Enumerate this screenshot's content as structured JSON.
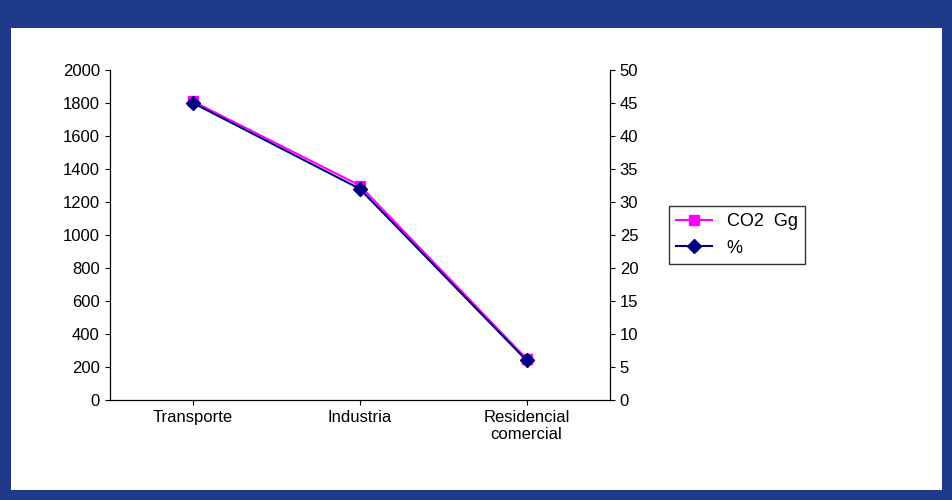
{
  "chart_data": {
    "type": "line",
    "categories": [
      "Transporte",
      "Industria",
      "Residencial\ncomercial"
    ],
    "series": [
      {
        "name": "CO2  Gg",
        "color": "#ff00ff",
        "marker": "square",
        "line_style": "solid",
        "values": [
          1810,
          1300,
          250
        ]
      },
      {
        "name": "%",
        "color": "#000080",
        "marker": "diamond",
        "line_style": "solid",
        "axis": "y2",
        "values": [
          45,
          32,
          6
        ]
      }
    ],
    "ylim": [
      0,
      2000
    ],
    "yticks": [
      0,
      200,
      400,
      600,
      800,
      1000,
      1200,
      1400,
      1600,
      1800,
      2000
    ],
    "y2lim": [
      0,
      50
    ],
    "y2ticks": [
      0,
      5,
      10,
      15,
      20,
      25,
      30,
      35,
      40,
      45,
      50
    ],
    "grid": false,
    "legend": "right"
  }
}
